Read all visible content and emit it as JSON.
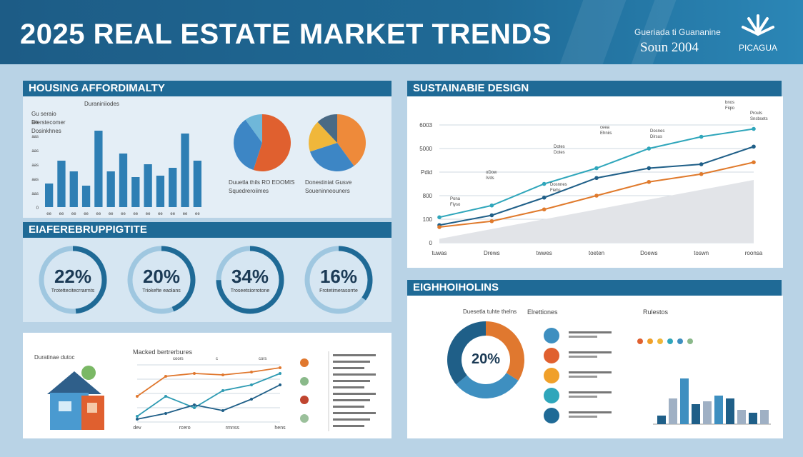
{
  "header": {
    "title": "2025 REAL ESTATE MARKET TRENDS",
    "right_line1": "Gueriada ti Guananine",
    "right_line2": "Soun 2004",
    "brand": "PICAGUA"
  },
  "sections": {
    "affordability": "HOUSING AFFORDIMALTY",
    "rates": "EIAFEREBRUPPIGTITE",
    "sustainable": "SUSTAINABIE DESIGN",
    "eightholkins": "EIGHHOIHOLINS"
  },
  "affordability": {
    "legend_label": "Duraniniiodes",
    "legend_line1": "Gu seraio",
    "legend_line2": "Dierstecomer",
    "legend_line3": "Dosinkhnes",
    "pie1_caption_line1": "Duuetla thils RO EOOMIS",
    "pie1_caption_line2": "Squedreroiimes",
    "pie2_caption_line1": "Donestiniat Gusve",
    "pie2_caption_line2": "Soueninneouners"
  },
  "rings": [
    {
      "value": "22%",
      "caption": "Trotettecitecrrarmts",
      "fraction": 0.22
    },
    {
      "value": "20%",
      "caption": "Triokefte eaolans",
      "fraction": 0.2
    },
    {
      "value": "34%",
      "caption": "Troseetsiorrotone",
      "fraction": 0.34
    },
    {
      "value": "16%",
      "caption": "Frotetimerasorrte",
      "fraction": 0.16
    }
  ],
  "bottom_left": {
    "house_label": "Duratinae dutoc",
    "chart_title": "Macked bertrerbures",
    "tick_labels": [
      "dev",
      "rcero",
      "rmnss",
      "hens"
    ],
    "annot": [
      "coors",
      "c",
      "cors"
    ]
  },
  "eightholkins": {
    "donut_value": "20%",
    "donut_caption": "Duesetla tuhte thelns",
    "items_title": "Elrettiones",
    "right_title": "Rulestos"
  },
  "colors": {
    "dark": "#1f6a96",
    "teal": "#2f9bb3",
    "orange": "#e0782f",
    "light": "#9fc7e0",
    "navy": "#1b3a55"
  },
  "chart_data": [
    {
      "type": "bar",
      "title": "HOUSING AFFORDIMALTY",
      "categories": [
        "ee",
        "ee",
        "ee",
        "ee",
        "ee",
        "ee",
        "ee",
        "ee",
        "ee",
        "ee",
        "ee",
        "ee",
        "ee"
      ],
      "values": [
        3.3,
        6.5,
        5.0,
        3.0,
        10.7,
        5.0,
        7.5,
        4.2,
        6.0,
        4.4,
        5.5,
        10.3,
        6.5
      ],
      "ytick_labels": [
        "aas",
        "aas",
        "aas",
        "aas",
        "aas",
        "aas",
        "0"
      ],
      "ylim": [
        0,
        12
      ]
    },
    {
      "type": "pie",
      "values": [
        0.55,
        0.35,
        0.1
      ],
      "colors": [
        "#e0602f",
        "#3d86c5",
        "#6fb7d9"
      ]
    },
    {
      "type": "pie",
      "values": [
        0.4,
        0.3,
        0.18,
        0.12
      ],
      "colors": [
        "#ee8a3a",
        "#3d86c5",
        "#f0b73a",
        "#4a6a85"
      ]
    },
    {
      "type": "line",
      "title": "SUSTAINABIE DESIGN",
      "categories": [
        "tuwas",
        "Drews",
        "twwes",
        "toeten",
        "Doews",
        "toswn",
        "roonsa"
      ],
      "ytick_labels": [
        "6003",
        "5000",
        "Pdid",
        "800",
        "100",
        "0"
      ],
      "series": [
        {
          "values": [
            1.3,
            1.9,
            3.0,
            3.8,
            4.8,
            5.4,
            5.8
          ],
          "color": "#2fa6bb"
        },
        {
          "values": [
            0.9,
            1.4,
            2.3,
            3.3,
            3.8,
            4.0,
            4.9
          ],
          "color": "#1f5f88"
        },
        {
          "values": [
            0.8,
            1.1,
            1.7,
            2.4,
            3.1,
            3.5,
            4.1
          ],
          "color": "#e07a2c"
        }
      ],
      "annotations": [
        "Pona Fiyso",
        "oDow iVds",
        "Dotes Dotes",
        "ceea Ehniis",
        "Dosnes Dirsus",
        "Dosnnes Fiehs",
        "bnos Fiqio",
        "Prouls Snsbsets"
      ],
      "ylim": [
        0,
        6
      ]
    },
    {
      "type": "line",
      "series": [
        {
          "values": [
            0.9,
            1.6,
            1.7,
            1.65,
            1.75,
            1.9
          ],
          "color": "#e0782f"
        },
        {
          "values": [
            0.2,
            0.9,
            0.5,
            1.1,
            1.3,
            1.7
          ],
          "color": "#2f9bb3"
        },
        {
          "values": [
            0.1,
            0.3,
            0.6,
            0.4,
            0.8,
            1.3
          ],
          "color": "#1f5f88"
        }
      ],
      "ylim": [
        0,
        2
      ]
    },
    {
      "type": "pie",
      "values": [
        0.34,
        0.3,
        0.36
      ],
      "colors": [
        "#e0782f",
        "#3e8fc0",
        "#1f5f88"
      ]
    },
    {
      "type": "bar",
      "values": [
        1.5,
        4.5,
        8.0,
        3.5,
        4.0,
        5.0,
        4.5,
        2.5,
        2.0,
        2.5
      ],
      "colors": [
        "#1f5f88",
        "#9fb0c4",
        "#3e8fc0",
        "#1f5f88",
        "#9fb0c4",
        "#3e8fc0",
        "#1f5f88",
        "#9fb0c4",
        "#1f5f88",
        "#9fb0c4"
      ],
      "ylim": [
        0,
        9
      ]
    }
  ]
}
